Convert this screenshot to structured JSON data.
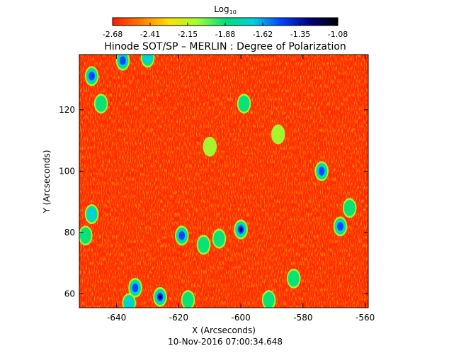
{
  "chart_data": {
    "type": "heatmap",
    "title": "Hinode SOT/SP – MERLIN : Degree of Polarization",
    "xlabel": "X (Arcseconds)",
    "ylabel": "Y (Arcseconds)",
    "timestamp": "10-Nov-2016 07:00:34.648",
    "colorbar": {
      "label_base": "Log",
      "label_sub": "10",
      "range": [
        -2.68,
        -1.08
      ],
      "ticks": [
        "-2.68",
        "-2.41",
        "-2.15",
        "-1.88",
        "-1.62",
        "-1.35",
        "-1.08"
      ],
      "colors": [
        "#ff1a00",
        "#ff7a00",
        "#ffe000",
        "#a0ff30",
        "#00e07a",
        "#00d0e0",
        "#0040ff",
        "#000080",
        "#000000"
      ]
    },
    "xlim": [
      -652,
      -559
    ],
    "ylim": [
      55.5,
      138
    ],
    "xticks": [
      "-640",
      "-620",
      "-600",
      "-580",
      "-560"
    ],
    "xtick_values": [
      -640,
      -620,
      -600,
      -580,
      -560
    ],
    "yticks": [
      "60",
      "80",
      "100",
      "120"
    ],
    "ytick_values": [
      60,
      80,
      100,
      120
    ],
    "magnetic_patches": [
      {
        "x": -648,
        "y": 131,
        "value": -1.3
      },
      {
        "x": -638,
        "y": 136,
        "value": -1.4
      },
      {
        "x": -630,
        "y": 137,
        "value": -1.5
      },
      {
        "x": -645,
        "y": 122,
        "value": -1.9
      },
      {
        "x": -648,
        "y": 86,
        "value": -1.5
      },
      {
        "x": -650,
        "y": 79,
        "value": -1.7
      },
      {
        "x": -619,
        "y": 79,
        "value": -1.3
      },
      {
        "x": -612,
        "y": 76,
        "value": -1.9
      },
      {
        "x": -600,
        "y": 81,
        "value": -1.2
      },
      {
        "x": -607,
        "y": 78,
        "value": -1.8
      },
      {
        "x": -626,
        "y": 59,
        "value": -1.2
      },
      {
        "x": -634,
        "y": 62,
        "value": -1.4
      },
      {
        "x": -636,
        "y": 57,
        "value": -1.6
      },
      {
        "x": -617,
        "y": 58,
        "value": -1.7
      },
      {
        "x": -568,
        "y": 82,
        "value": -1.3
      },
      {
        "x": -565,
        "y": 88,
        "value": -1.9
      },
      {
        "x": -574,
        "y": 100,
        "value": -1.4
      },
      {
        "x": -599,
        "y": 122,
        "value": -1.8
      },
      {
        "x": -591,
        "y": 58,
        "value": -1.8
      },
      {
        "x": -583,
        "y": 65,
        "value": -1.9
      },
      {
        "x": -610,
        "y": 108,
        "value": -2.0
      },
      {
        "x": -588,
        "y": 112,
        "value": -2.0
      }
    ]
  }
}
